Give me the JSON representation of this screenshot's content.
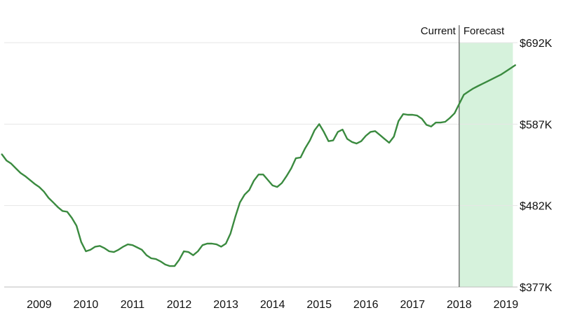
{
  "chart_data": {
    "type": "line",
    "title": "",
    "xlabel": "",
    "ylabel": "",
    "x_ticks": [
      {
        "label": "2009",
        "year": 2009.0
      },
      {
        "label": "2010",
        "year": 2010.0
      },
      {
        "label": "2011",
        "year": 2011.0
      },
      {
        "label": "2012",
        "year": 2012.0
      },
      {
        "label": "2013",
        "year": 2013.0
      },
      {
        "label": "2014",
        "year": 2014.0
      },
      {
        "label": "2015",
        "year": 2015.0
      },
      {
        "label": "2016",
        "year": 2016.0
      },
      {
        "label": "2017",
        "year": 2017.0
      },
      {
        "label": "2018",
        "year": 2018.0
      },
      {
        "label": "2019",
        "year": 2019.0
      }
    ],
    "y_ticks": [
      {
        "label": "$377K",
        "value": 377
      },
      {
        "label": "$482K",
        "value": 482
      },
      {
        "label": "$587K",
        "value": 587
      },
      {
        "label": "$692K",
        "value": 692
      }
    ],
    "xlim": [
      2008.25,
      2019.25
    ],
    "ylim": [
      377,
      692
    ],
    "grid": true,
    "split": {
      "year": 2018.0,
      "left_label": "Current",
      "right_label": "Forecast",
      "forecast_color": "#d6f2dc"
    },
    "series": [
      {
        "color": "#3a8a3f",
        "points": [
          [
            2008.2,
            548
          ],
          [
            2008.3,
            540
          ],
          [
            2008.4,
            536
          ],
          [
            2008.5,
            530
          ],
          [
            2008.6,
            524
          ],
          [
            2008.7,
            520
          ],
          [
            2008.8,
            515
          ],
          [
            2008.9,
            510
          ],
          [
            2009.0,
            506
          ],
          [
            2009.1,
            500
          ],
          [
            2009.2,
            492
          ],
          [
            2009.3,
            486
          ],
          [
            2009.4,
            480
          ],
          [
            2009.5,
            475
          ],
          [
            2009.6,
            474
          ],
          [
            2009.7,
            466
          ],
          [
            2009.8,
            456
          ],
          [
            2009.9,
            435
          ],
          [
            2010.0,
            423
          ],
          [
            2010.1,
            425
          ],
          [
            2010.2,
            429
          ],
          [
            2010.3,
            430
          ],
          [
            2010.4,
            427
          ],
          [
            2010.5,
            423
          ],
          [
            2010.6,
            422
          ],
          [
            2010.7,
            425
          ],
          [
            2010.8,
            429
          ],
          [
            2010.9,
            432
          ],
          [
            2011.0,
            431
          ],
          [
            2011.1,
            428
          ],
          [
            2011.2,
            425
          ],
          [
            2011.3,
            418
          ],
          [
            2011.4,
            414
          ],
          [
            2011.5,
            413
          ],
          [
            2011.6,
            410
          ],
          [
            2011.7,
            406
          ],
          [
            2011.8,
            404
          ],
          [
            2011.9,
            404
          ],
          [
            2012.0,
            412
          ],
          [
            2012.1,
            423
          ],
          [
            2012.2,
            422
          ],
          [
            2012.3,
            418
          ],
          [
            2012.4,
            423
          ],
          [
            2012.5,
            431
          ],
          [
            2012.6,
            433
          ],
          [
            2012.7,
            433
          ],
          [
            2012.8,
            432
          ],
          [
            2012.9,
            429
          ],
          [
            2013.0,
            433
          ],
          [
            2013.1,
            446
          ],
          [
            2013.2,
            467
          ],
          [
            2013.3,
            486
          ],
          [
            2013.4,
            496
          ],
          [
            2013.5,
            502
          ],
          [
            2013.6,
            514
          ],
          [
            2013.7,
            522
          ],
          [
            2013.8,
            522
          ],
          [
            2013.9,
            515
          ],
          [
            2014.0,
            508
          ],
          [
            2014.1,
            506
          ],
          [
            2014.2,
            511
          ],
          [
            2014.3,
            520
          ],
          [
            2014.4,
            530
          ],
          [
            2014.5,
            543
          ],
          [
            2014.6,
            544
          ],
          [
            2014.7,
            556
          ],
          [
            2014.8,
            566
          ],
          [
            2014.9,
            579
          ],
          [
            2015.0,
            587
          ],
          [
            2015.1,
            577
          ],
          [
            2015.2,
            565
          ],
          [
            2015.3,
            566
          ],
          [
            2015.4,
            577
          ],
          [
            2015.5,
            580
          ],
          [
            2015.6,
            568
          ],
          [
            2015.7,
            564
          ],
          [
            2015.8,
            562
          ],
          [
            2015.9,
            565
          ],
          [
            2016.0,
            572
          ],
          [
            2016.1,
            577
          ],
          [
            2016.2,
            578
          ],
          [
            2016.3,
            573
          ],
          [
            2016.4,
            568
          ],
          [
            2016.5,
            563
          ],
          [
            2016.6,
            571
          ],
          [
            2016.7,
            591
          ],
          [
            2016.8,
            600
          ],
          [
            2016.9,
            599
          ],
          [
            2017.0,
            599
          ],
          [
            2017.1,
            598
          ],
          [
            2017.2,
            594
          ],
          [
            2017.3,
            586
          ],
          [
            2017.4,
            584
          ],
          [
            2017.5,
            589
          ],
          [
            2017.6,
            589
          ],
          [
            2017.7,
            590
          ],
          [
            2017.8,
            595
          ],
          [
            2017.9,
            601
          ],
          [
            2018.0,
            613
          ],
          [
            2018.1,
            625
          ],
          [
            2018.2,
            629
          ],
          [
            2018.3,
            633
          ],
          [
            2018.4,
            636
          ],
          [
            2018.5,
            639
          ],
          [
            2018.6,
            642
          ],
          [
            2018.7,
            645
          ],
          [
            2018.8,
            648
          ],
          [
            2018.9,
            651
          ],
          [
            2019.0,
            655
          ],
          [
            2019.1,
            659
          ],
          [
            2019.2,
            663
          ]
        ]
      }
    ]
  }
}
